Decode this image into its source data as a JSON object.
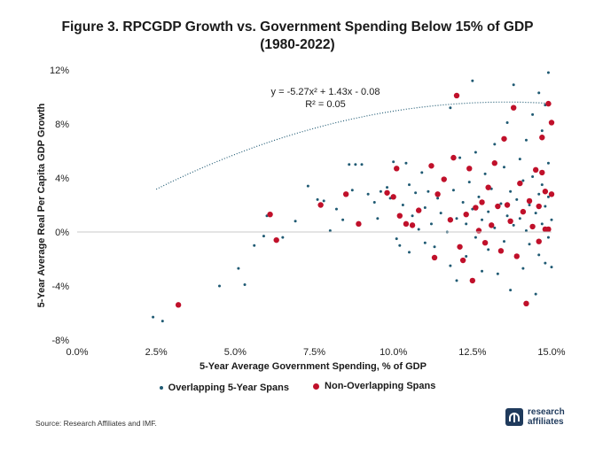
{
  "figure": {
    "title_line1": "Figure 3. RPCGDP Growth vs. Government Spending Below 15% of GDP",
    "title_line2": "(1980-2022)",
    "source": "Source: Research Affiliates and IMF.",
    "brand": {
      "line1": "research",
      "line2": "affiliates",
      "icon": "research-affiliates-logo-icon"
    }
  },
  "chart_data": {
    "type": "scatter",
    "xlabel": "5-Year Average Government Spending, % of GDP",
    "ylabel": "5-Year Average Real Per Capita GDP Growth",
    "xlim": [
      0,
      15
    ],
    "ylim": [
      -8,
      12
    ],
    "x_ticks": [
      0,
      2.5,
      5,
      7.5,
      10,
      12.5,
      15
    ],
    "x_tick_labels": [
      "0.0%",
      "2.5%",
      "5.0%",
      "7.5%",
      "10.0%",
      "12.5%",
      "15.0%"
    ],
    "y_ticks": [
      -8,
      -4,
      0,
      4,
      8,
      12
    ],
    "y_tick_labels": [
      "-8%",
      "-4%",
      "0%",
      "4%",
      "8%",
      "12%"
    ],
    "grid": false,
    "legend_position": "bottom",
    "colors": {
      "overlapping": "#1f5a73",
      "non_overlapping": "#c0102a",
      "trend": "#1f5a73"
    },
    "equation": "y = -5.27x² + 1.43x - 0.08",
    "r_squared": "R² = 0.05",
    "trendline": {
      "a": -5.27,
      "b": 1.43,
      "c": -0.08,
      "x_from": 2.5,
      "x_to": 15
    },
    "series": [
      {
        "name": "Overlapping 5-Year Spans",
        "points": [
          [
            2.4,
            -6.3
          ],
          [
            2.7,
            -6.6
          ],
          [
            4.5,
            -4.0
          ],
          [
            5.1,
            -2.7
          ],
          [
            5.3,
            -3.9
          ],
          [
            5.6,
            -1.0
          ],
          [
            5.9,
            -0.3
          ],
          [
            6.0,
            1.2
          ],
          [
            6.5,
            -0.4
          ],
          [
            6.9,
            0.8
          ],
          [
            7.3,
            3.4
          ],
          [
            7.6,
            2.4
          ],
          [
            7.8,
            2.3
          ],
          [
            8.0,
            0.1
          ],
          [
            8.2,
            1.7
          ],
          [
            8.4,
            0.9
          ],
          [
            8.6,
            5.0
          ],
          [
            8.7,
            3.1
          ],
          [
            8.8,
            5.0
          ],
          [
            9.0,
            5.0
          ],
          [
            9.2,
            2.8
          ],
          [
            9.4,
            2.2
          ],
          [
            9.5,
            1.0
          ],
          [
            9.6,
            3.0
          ],
          [
            9.8,
            3.3
          ],
          [
            9.9,
            2.5
          ],
          [
            10.0,
            5.2
          ],
          [
            10.1,
            -0.5
          ],
          [
            10.2,
            -1.0
          ],
          [
            10.3,
            2.0
          ],
          [
            10.4,
            5.1
          ],
          [
            10.5,
            3.5
          ],
          [
            10.5,
            -1.5
          ],
          [
            10.6,
            1.2
          ],
          [
            10.7,
            2.9
          ],
          [
            10.8,
            0.2
          ],
          [
            10.9,
            4.4
          ],
          [
            11.0,
            1.8
          ],
          [
            11.0,
            -0.8
          ],
          [
            11.1,
            3.0
          ],
          [
            11.2,
            0.6
          ],
          [
            11.3,
            -1.1
          ],
          [
            11.4,
            2.5
          ],
          [
            11.5,
            1.4
          ],
          [
            11.6,
            4.0
          ],
          [
            11.7,
            0.0
          ],
          [
            11.8,
            9.2
          ],
          [
            11.8,
            -2.5
          ],
          [
            11.9,
            3.1
          ],
          [
            12.0,
            1.0
          ],
          [
            12.0,
            -3.6
          ],
          [
            12.1,
            5.5
          ],
          [
            12.2,
            2.2
          ],
          [
            12.3,
            0.6
          ],
          [
            12.3,
            -1.8
          ],
          [
            12.4,
            3.7
          ],
          [
            12.5,
            11.2
          ],
          [
            12.5,
            1.7
          ],
          [
            12.6,
            -0.4
          ],
          [
            12.6,
            5.9
          ],
          [
            12.7,
            2.6
          ],
          [
            12.8,
            -2.9
          ],
          [
            12.8,
            0.9
          ],
          [
            12.9,
            4.3
          ],
          [
            13.0,
            1.5
          ],
          [
            13.0,
            -1.3
          ],
          [
            13.1,
            3.2
          ],
          [
            13.2,
            6.5
          ],
          [
            13.2,
            0.3
          ],
          [
            13.3,
            -3.1
          ],
          [
            13.4,
            2.1
          ],
          [
            13.5,
            4.8
          ],
          [
            13.5,
            -0.7
          ],
          [
            13.6,
            1.2
          ],
          [
            13.6,
            8.1
          ],
          [
            13.7,
            3.0
          ],
          [
            13.7,
            -4.3
          ],
          [
            13.8,
            0.5
          ],
          [
            13.8,
            10.9
          ],
          [
            13.9,
            2.4
          ],
          [
            13.9,
            -1.9
          ],
          [
            14.0,
            5.4
          ],
          [
            14.0,
            1.0
          ],
          [
            14.1,
            -2.7
          ],
          [
            14.1,
            3.8
          ],
          [
            14.2,
            0.1
          ],
          [
            14.2,
            6.8
          ],
          [
            14.3,
            2.0
          ],
          [
            14.3,
            -0.9
          ],
          [
            14.4,
            8.7
          ],
          [
            14.4,
            4.1
          ],
          [
            14.5,
            -4.6
          ],
          [
            14.5,
            1.4
          ],
          [
            14.6,
            10.3
          ],
          [
            14.6,
            2.8
          ],
          [
            14.6,
            -1.7
          ],
          [
            14.7,
            0.6
          ],
          [
            14.7,
            7.5
          ],
          [
            14.7,
            3.5
          ],
          [
            14.8,
            -2.3
          ],
          [
            14.8,
            9.4
          ],
          [
            14.8,
            1.9
          ],
          [
            14.9,
            5.1
          ],
          [
            14.9,
            -0.4
          ],
          [
            14.9,
            11.8
          ],
          [
            14.9,
            2.6
          ],
          [
            15.0,
            -2.6
          ],
          [
            15.0,
            0.9
          ]
        ]
      },
      {
        "name": "Non-Overlapping Spans",
        "points": [
          [
            3.2,
            -5.4
          ],
          [
            6.1,
            1.3
          ],
          [
            6.3,
            -0.6
          ],
          [
            7.7,
            2.0
          ],
          [
            8.5,
            2.8
          ],
          [
            8.9,
            0.6
          ],
          [
            9.8,
            2.9
          ],
          [
            10.0,
            2.6
          ],
          [
            10.1,
            4.7
          ],
          [
            10.2,
            1.2
          ],
          [
            10.4,
            0.6
          ],
          [
            10.6,
            0.5
          ],
          [
            10.8,
            1.6
          ],
          [
            11.2,
            4.9
          ],
          [
            11.3,
            -1.9
          ],
          [
            11.4,
            2.8
          ],
          [
            11.6,
            3.9
          ],
          [
            11.8,
            0.9
          ],
          [
            11.9,
            5.5
          ],
          [
            12.0,
            10.1
          ],
          [
            12.1,
            -1.1
          ],
          [
            12.2,
            -2.1
          ],
          [
            12.3,
            1.3
          ],
          [
            12.4,
            4.7
          ],
          [
            12.5,
            -3.6
          ],
          [
            12.6,
            1.8
          ],
          [
            12.7,
            0.1
          ],
          [
            12.8,
            2.2
          ],
          [
            12.9,
            -0.8
          ],
          [
            13.0,
            3.3
          ],
          [
            13.1,
            0.5
          ],
          [
            13.2,
            5.1
          ],
          [
            13.3,
            1.9
          ],
          [
            13.4,
            -1.4
          ],
          [
            13.5,
            6.9
          ],
          [
            13.6,
            2.0
          ],
          [
            13.7,
            0.8
          ],
          [
            13.8,
            9.2
          ],
          [
            13.9,
            -1.8
          ],
          [
            14.0,
            3.6
          ],
          [
            14.1,
            1.5
          ],
          [
            14.2,
            -5.3
          ],
          [
            14.3,
            2.3
          ],
          [
            14.4,
            0.4
          ],
          [
            14.5,
            4.6
          ],
          [
            14.6,
            1.9
          ],
          [
            14.6,
            -0.7
          ],
          [
            14.7,
            7.0
          ],
          [
            14.7,
            4.4
          ],
          [
            14.8,
            0.2
          ],
          [
            14.8,
            3.0
          ],
          [
            14.9,
            9.5
          ],
          [
            14.9,
            0.2
          ],
          [
            15.0,
            8.1
          ],
          [
            15.0,
            2.8
          ]
        ]
      }
    ]
  }
}
